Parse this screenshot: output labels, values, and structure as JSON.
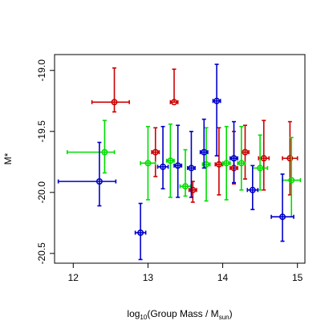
{
  "chart_data": {
    "type": "scatter",
    "title": "",
    "xlabel": {
      "prefix": "log",
      "sub1": "10",
      "middle": "(Group Mass / M",
      "sub2": "sun",
      "suffix": ")"
    },
    "ylabel": "M*",
    "xlim": [
      11.75,
      15.1
    ],
    "ylim": [
      -20.58,
      -18.87
    ],
    "y_reversed": true,
    "grid": false,
    "x_ticks": [
      12,
      13,
      14,
      15
    ],
    "x_tick_labels": [
      "12",
      "13",
      "14",
      "15"
    ],
    "y_ticks": [
      -19.0,
      -19.5,
      -20.0,
      -20.5
    ],
    "y_tick_labels": [
      "-19.0",
      "-19.5",
      "-20.0",
      "-20.5"
    ],
    "series": [
      {
        "color": "#cc0000",
        "points": [
          {
            "x": 12.55,
            "y": -19.26,
            "xerr": [
              0.3,
              0.2
            ],
            "yerr": [
              0.28,
              0.08
            ]
          },
          {
            "x": 13.35,
            "y": -19.26,
            "xerr": [
              0.05,
              0.05
            ],
            "yerr": [
              0.27,
              0.0
            ]
          },
          {
            "x": 13.1,
            "y": -19.67,
            "xerr": [
              0.05,
              0.05
            ],
            "yerr": [
              0.2,
              0.2
            ]
          },
          {
            "x": 13.6,
            "y": -19.98,
            "xerr": [
              0.05,
              0.05
            ],
            "yerr": [
              0.07,
              0.1
            ]
          },
          {
            "x": 13.95,
            "y": -19.77,
            "xerr": [
              0.05,
              0.05
            ],
            "yerr": [
              0.3,
              0.25
            ]
          },
          {
            "x": 14.15,
            "y": -19.8,
            "xerr": [
              0.05,
              0.05
            ],
            "yerr": [
              0.3,
              0.13
            ]
          },
          {
            "x": 14.3,
            "y": -19.67,
            "xerr": [
              0.05,
              0.05
            ],
            "yerr": [
              0.22,
              0.22
            ]
          },
          {
            "x": 14.55,
            "y": -19.72,
            "xerr": [
              0.07,
              0.07
            ],
            "yerr": [
              0.31,
              0.26
            ]
          },
          {
            "x": 14.9,
            "y": -19.72,
            "xerr": [
              0.1,
              0.1
            ],
            "yerr": [
              0.3,
              0.3
            ]
          }
        ]
      },
      {
        "color": "#00dd00",
        "points": [
          {
            "x": 12.42,
            "y": -19.67,
            "xerr": [
              0.5,
              0.13
            ],
            "yerr": [
              0.26,
              0.17
            ]
          },
          {
            "x": 13.0,
            "y": -19.76,
            "xerr": [
              0.1,
              0.1
            ],
            "yerr": [
              0.3,
              0.3
            ]
          },
          {
            "x": 13.3,
            "y": -19.74,
            "xerr": [
              0.05,
              0.05
            ],
            "yerr": [
              0.3,
              0.3
            ]
          },
          {
            "x": 13.5,
            "y": -19.95,
            "xerr": [
              0.07,
              0.07
            ],
            "yerr": [
              0.3,
              0.08
            ]
          },
          {
            "x": 13.78,
            "y": -19.77,
            "xerr": [
              0.05,
              0.05
            ],
            "yerr": [
              0.3,
              0.3
            ]
          },
          {
            "x": 14.05,
            "y": -19.76,
            "xerr": [
              0.05,
              0.05
            ],
            "yerr": [
              0.3,
              0.3
            ]
          },
          {
            "x": 14.25,
            "y": -19.76,
            "xerr": [
              0.05,
              0.05
            ],
            "yerr": [
              0.3,
              0.22
            ]
          },
          {
            "x": 14.5,
            "y": -19.8,
            "xerr": [
              0.1,
              0.1
            ],
            "yerr": [
              0.27,
              0.18
            ]
          },
          {
            "x": 14.92,
            "y": -19.9,
            "xerr": [
              0.12,
              0.12
            ],
            "yerr": [
              0.35,
              0.3
            ]
          }
        ]
      },
      {
        "color": "#0000cc",
        "points": [
          {
            "x": 12.35,
            "y": -19.91,
            "xerr": [
              0.55,
              0.22
            ],
            "yerr": [
              0.32,
              0.2
            ]
          },
          {
            "x": 12.9,
            "y": -20.33,
            "xerr": [
              0.07,
              0.07
            ],
            "yerr": [
              0.24,
              0.22
            ]
          },
          {
            "x": 13.2,
            "y": -19.79,
            "xerr": [
              0.07,
              0.07
            ],
            "yerr": [
              0.33,
              0.18
            ]
          },
          {
            "x": 13.4,
            "y": -19.78,
            "xerr": [
              0.05,
              0.05
            ],
            "yerr": [
              0.33,
              0.26
            ]
          },
          {
            "x": 13.58,
            "y": -19.8,
            "xerr": [
              0.05,
              0.05
            ],
            "yerr": [
              0.3,
              0.24
            ]
          },
          {
            "x": 13.75,
            "y": -19.67,
            "xerr": [
              0.05,
              0.05
            ],
            "yerr": [
              0.27,
              0.13
            ]
          },
          {
            "x": 13.92,
            "y": -19.25,
            "xerr": [
              0.05,
              0.05
            ],
            "yerr": [
              0.3,
              0.45
            ]
          },
          {
            "x": 14.15,
            "y": -19.72,
            "xerr": [
              0.05,
              0.05
            ],
            "yerr": [
              0.3,
              0.2
            ]
          },
          {
            "x": 14.4,
            "y": -19.98,
            "xerr": [
              0.07,
              0.07
            ],
            "yerr": [
              0.2,
              0.16
            ]
          },
          {
            "x": 14.8,
            "y": -20.2,
            "xerr": [
              0.15,
              0.15
            ],
            "yerr": [
              0.35,
              0.2
            ]
          }
        ]
      }
    ]
  }
}
